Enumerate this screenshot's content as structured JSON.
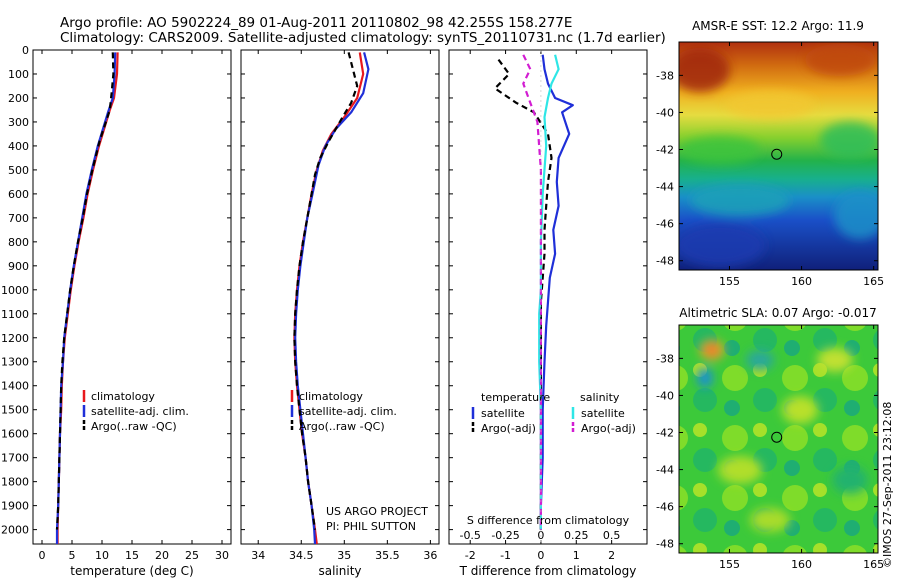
{
  "header": {
    "title_line1": "Argo profile: AO 5902224_89 01-Aug-2011 20110802_98 42.255S 158.277E",
    "title_line2": "Climatology: CARS2009. Satellite-adjusted climatology: synTS_20110731.nc (1.7d earlier)"
  },
  "colors": {
    "climatology": "#e8181d",
    "satellite": "#1f2fd8",
    "argo_temp": "#000000",
    "satellite_sal": "#2ee6e6",
    "argo_sal": "#d21dd2",
    "axis": "#000000"
  },
  "chart_data": [
    {
      "type": "line",
      "name": "temperature-profile",
      "xlabel": "temperature (deg C)",
      "ylabel": "",
      "xlim": [
        -1.5,
        31.5
      ],
      "ylim": [
        2060,
        0
      ],
      "xticks": [
        0,
        5,
        10,
        15,
        20,
        25,
        30
      ],
      "yticks": [
        0,
        100,
        200,
        300,
        400,
        500,
        600,
        700,
        800,
        900,
        1000,
        1100,
        1200,
        1300,
        1400,
        1500,
        1600,
        1700,
        1800,
        1900,
        2000
      ],
      "series": [
        {
          "name": "climatology",
          "color": "#e8181d",
          "dash": "",
          "points": [
            [
              12.6,
              10
            ],
            [
              12.5,
              100
            ],
            [
              12.0,
              200
            ],
            [
              11.3,
              250
            ],
            [
              9.5,
              400
            ],
            [
              8.5,
              500
            ],
            [
              7.6,
              600
            ],
            [
              6.9,
              700
            ],
            [
              6.1,
              800
            ],
            [
              5.4,
              900
            ],
            [
              4.8,
              1000
            ],
            [
              4.3,
              1100
            ],
            [
              3.8,
              1200
            ],
            [
              3.5,
              1300
            ],
            [
              3.3,
              1400
            ],
            [
              3.2,
              1500
            ],
            [
              3.0,
              1600
            ],
            [
              2.9,
              1700
            ],
            [
              2.8,
              1800
            ],
            [
              2.7,
              1900
            ],
            [
              2.6,
              2000
            ],
            [
              2.6,
              2060
            ]
          ]
        },
        {
          "name": "satellite-adj. clim.",
          "color": "#1f2fd8",
          "dash": "",
          "points": [
            [
              12.2,
              10
            ],
            [
              12.1,
              100
            ],
            [
              11.8,
              200
            ],
            [
              11.0,
              260
            ],
            [
              9.3,
              400
            ],
            [
              8.3,
              500
            ],
            [
              7.4,
              600
            ],
            [
              6.7,
              700
            ],
            [
              6.0,
              800
            ],
            [
              5.3,
              900
            ],
            [
              4.7,
              1000
            ],
            [
              4.2,
              1100
            ],
            [
              3.7,
              1200
            ],
            [
              3.5,
              1300
            ],
            [
              3.2,
              1400
            ],
            [
              3.1,
              1500
            ],
            [
              3.0,
              1600
            ],
            [
              2.9,
              1700
            ],
            [
              2.8,
              1800
            ],
            [
              2.7,
              1900
            ],
            [
              2.5,
              2000
            ],
            [
              2.5,
              2060
            ]
          ]
        },
        {
          "name": "Argo(..raw -QC)",
          "color": "#000000",
          "dash": "6,4",
          "points": [
            [
              11.8,
              10
            ],
            [
              11.9,
              100
            ],
            [
              11.6,
              180
            ],
            [
              11.3,
              250
            ],
            [
              9.6,
              380
            ],
            [
              8.4,
              500
            ],
            [
              7.5,
              600
            ],
            [
              6.8,
              700
            ],
            [
              6.0,
              800
            ],
            [
              5.3,
              900
            ],
            [
              4.7,
              1000
            ],
            [
              4.2,
              1100
            ],
            [
              3.7,
              1200
            ],
            [
              3.4,
              1300
            ],
            [
              3.2,
              1400
            ],
            [
              3.1,
              1500
            ],
            [
              3.0,
              1600
            ],
            [
              2.9,
              1700
            ],
            [
              2.8,
              1800
            ],
            [
              2.7,
              1900
            ],
            [
              2.5,
              2000
            ]
          ]
        }
      ],
      "legend": [
        "climatology",
        "satellite-adj. clim.",
        "Argo(..raw -QC)"
      ]
    },
    {
      "type": "line",
      "name": "salinity-profile",
      "xlabel": "salinity",
      "xlim": [
        33.8,
        36.1
      ],
      "ylim": [
        2060,
        0
      ],
      "xticks": [
        34,
        34.5,
        35,
        35.5,
        36
      ],
      "series": [
        {
          "name": "climatology",
          "color": "#e8181d",
          "dash": "",
          "points": [
            [
              35.18,
              10
            ],
            [
              35.22,
              100
            ],
            [
              35.15,
              200
            ],
            [
              35.0,
              280
            ],
            [
              34.85,
              350
            ],
            [
              34.75,
              420
            ],
            [
              34.68,
              500
            ],
            [
              34.62,
              600
            ],
            [
              34.57,
              700
            ],
            [
              34.52,
              800
            ],
            [
              34.48,
              900
            ],
            [
              34.45,
              1000
            ],
            [
              34.43,
              1100
            ],
            [
              34.42,
              1200
            ],
            [
              34.43,
              1300
            ],
            [
              34.45,
              1400
            ],
            [
              34.48,
              1500
            ],
            [
              34.51,
              1600
            ],
            [
              34.55,
              1700
            ],
            [
              34.58,
              1800
            ],
            [
              34.62,
              1900
            ],
            [
              34.66,
              2000
            ],
            [
              34.68,
              2060
            ]
          ]
        },
        {
          "name": "satellite-adj. clim.",
          "color": "#1f2fd8",
          "dash": "",
          "points": [
            [
              35.23,
              10
            ],
            [
              35.28,
              80
            ],
            [
              35.22,
              180
            ],
            [
              35.08,
              260
            ],
            [
              34.9,
              330
            ],
            [
              34.78,
              400
            ],
            [
              34.7,
              480
            ],
            [
              34.63,
              600
            ],
            [
              34.57,
              700
            ],
            [
              34.53,
              800
            ],
            [
              34.49,
              900
            ],
            [
              34.46,
              1000
            ],
            [
              34.44,
              1100
            ],
            [
              34.43,
              1200
            ],
            [
              34.44,
              1300
            ],
            [
              34.46,
              1400
            ],
            [
              34.49,
              1500
            ],
            [
              34.52,
              1600
            ],
            [
              34.55,
              1700
            ],
            [
              34.58,
              1800
            ],
            [
              34.62,
              1900
            ],
            [
              34.65,
              2000
            ],
            [
              34.66,
              2060
            ]
          ]
        },
        {
          "name": "Argo(..raw -QC)",
          "color": "#000000",
          "dash": "6,4",
          "points": [
            [
              35.05,
              10
            ],
            [
              35.1,
              80
            ],
            [
              35.15,
              150
            ],
            [
              35.08,
              220
            ],
            [
              34.98,
              280
            ],
            [
              34.82,
              380
            ],
            [
              34.72,
              450
            ],
            [
              34.66,
              520
            ],
            [
              34.62,
              600
            ],
            [
              34.57,
              700
            ],
            [
              34.52,
              800
            ],
            [
              34.48,
              900
            ],
            [
              34.45,
              1000
            ],
            [
              34.43,
              1100
            ],
            [
              34.42,
              1200
            ],
            [
              34.43,
              1300
            ],
            [
              34.45,
              1400
            ],
            [
              34.48,
              1500
            ],
            [
              34.51,
              1600
            ],
            [
              34.55,
              1700
            ],
            [
              34.58,
              1800
            ],
            [
              34.62,
              1900
            ],
            [
              34.66,
              2000
            ]
          ]
        }
      ],
      "legend": [
        "climatology",
        "satellite-adj. clim.",
        "Argo(..raw -QC)"
      ],
      "annotation_line1": "US ARGO PROJECT",
      "annotation_line2": "PI: PHIL SUTTON"
    },
    {
      "type": "line",
      "name": "difference-profile",
      "xlabel": "T difference from climatology",
      "top_xlabel": "S difference from climatology",
      "xlim": [
        -2.6,
        3.0
      ],
      "ylim": [
        2060,
        0
      ],
      "xticks": [
        -2,
        -1,
        0,
        1,
        2
      ],
      "top_ticks": [
        {
          "label": "-0.5",
          "x": -2.0
        },
        {
          "label": "-0.25",
          "x": -1.0
        },
        {
          "label": "0",
          "x": 0.0
        },
        {
          "label": "0.25",
          "x": 1.0
        },
        {
          "label": "0.5",
          "x": 2.0
        }
      ],
      "series": [
        {
          "name": "temperature satellite",
          "color": "#1f2fd8",
          "dash": "",
          "points": [
            [
              0.05,
              20
            ],
            [
              0.1,
              80
            ],
            [
              0.2,
              140
            ],
            [
              0.4,
              200
            ],
            [
              0.9,
              230
            ],
            [
              0.6,
              260
            ],
            [
              0.8,
              350
            ],
            [
              0.5,
              450
            ],
            [
              0.45,
              550
            ],
            [
              0.5,
              650
            ],
            [
              0.35,
              750
            ],
            [
              0.4,
              850
            ],
            [
              0.25,
              950
            ],
            [
              0.2,
              1050
            ],
            [
              0.15,
              1150
            ],
            [
              0.1,
              1300
            ],
            [
              0.05,
              1500
            ],
            [
              0.05,
              1700
            ],
            [
              0.0,
              1900
            ],
            [
              0.0,
              2000
            ]
          ]
        },
        {
          "name": "temperature Argo(-adj)",
          "color": "#000000",
          "dash": "6,4",
          "points": [
            [
              -1.2,
              40
            ],
            [
              -0.9,
              100
            ],
            [
              -1.3,
              160
            ],
            [
              -0.7,
              220
            ],
            [
              -0.2,
              260
            ],
            [
              0.2,
              350
            ],
            [
              0.3,
              450
            ],
            [
              0.2,
              550
            ],
            [
              0.15,
              650
            ],
            [
              0.1,
              750
            ],
            [
              0.1,
              850
            ],
            [
              0.05,
              950
            ],
            [
              0.0,
              1050
            ],
            [
              0.0,
              1200
            ],
            [
              0.0,
              1400
            ],
            [
              0.0,
              1600
            ],
            [
              0.0,
              1800
            ],
            [
              0.0,
              2000
            ]
          ]
        },
        {
          "name": "salinity satellite",
          "color": "#2ee6e6",
          "dash": "",
          "points": [
            [
              0.4,
              20
            ],
            [
              0.5,
              80
            ],
            [
              0.3,
              140
            ],
            [
              0.2,
              200
            ],
            [
              0.1,
              280
            ],
            [
              0.15,
              400
            ],
            [
              0.05,
              600
            ],
            [
              0.0,
              800
            ],
            [
              0.0,
              1000
            ],
            [
              -0.05,
              1100
            ],
            [
              -0.05,
              1300
            ],
            [
              0.0,
              1500
            ],
            [
              0.0,
              1700
            ],
            [
              0.0,
              1900
            ],
            [
              0.0,
              2000
            ]
          ]
        },
        {
          "name": "salinity Argo(-adj)",
          "color": "#d21dd2",
          "dash": "6,4",
          "points": [
            [
              -0.5,
              20
            ],
            [
              -0.3,
              80
            ],
            [
              -0.5,
              140
            ],
            [
              -0.3,
              220
            ],
            [
              -0.1,
              300
            ],
            [
              0.0,
              500
            ],
            [
              0.0,
              700
            ],
            [
              0.0,
              1000
            ],
            [
              0.0,
              1300
            ],
            [
              0.0,
              1600
            ],
            [
              0.0,
              2000
            ]
          ]
        }
      ],
      "legend_temp_title": "temperature",
      "legend_sal_title": "salinity",
      "legend_temp": [
        "satellite",
        "Argo(-adj)"
      ],
      "legend_sal": [
        "satellite",
        "Argo(-adj)"
      ]
    },
    {
      "type": "heatmap",
      "name": "amsre-sst-map",
      "title": "AMSR-E SST: 12.2 Argo: 11.9",
      "xlim": [
        151.5,
        165.3
      ],
      "ylim": [
        -48.5,
        -36.2
      ],
      "xticks": [
        155,
        160,
        165
      ],
      "yticks": [
        -38,
        -40,
        -42,
        -44,
        -46,
        -48
      ],
      "marker": {
        "lon": 158.277,
        "lat": -42.255
      }
    },
    {
      "type": "heatmap",
      "name": "altimetric-sla-map",
      "title": "Altimetric SLA: 0.07 Argo: -0.017",
      "xlim": [
        151.5,
        165.3
      ],
      "ylim": [
        -48.5,
        -36.2
      ],
      "xticks": [
        155,
        160,
        165
      ],
      "yticks": [
        -38,
        -40,
        -42,
        -44,
        -46,
        -48
      ],
      "marker": {
        "lon": 158.277,
        "lat": -42.255
      }
    }
  ],
  "footer": {
    "credit": "©IMOS 27-Sep-2011 23:12:08"
  }
}
